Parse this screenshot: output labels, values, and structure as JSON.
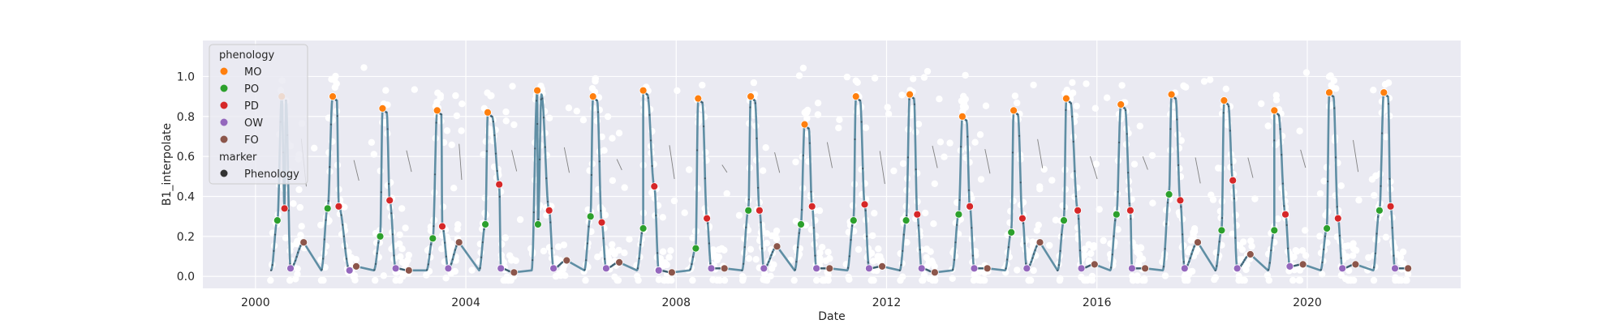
{
  "chart_data": {
    "type": "scatter",
    "title": "",
    "xlabel": "Date",
    "ylabel": "B1_interpolate",
    "xlim": [
      "1999-01-01",
      "2022-12-01"
    ],
    "ylim": [
      -0.06,
      1.18
    ],
    "x_ticks": [
      "2000",
      "2004",
      "2008",
      "2012",
      "2016",
      "2020"
    ],
    "y_ticks": [
      "0.0",
      "0.2",
      "0.4",
      "0.6",
      "0.8",
      "1.0"
    ],
    "grid": true,
    "legend_position": "upper-left",
    "legend": {
      "hue_title": "phenology",
      "hue_entries": [
        {
          "label": "MO",
          "color": "#ff7f0e"
        },
        {
          "label": "PO",
          "color": "#2ca02c"
        },
        {
          "label": "PD",
          "color": "#d62728"
        },
        {
          "label": "OW",
          "color": "#9467bd"
        },
        {
          "label": "FO",
          "color": "#8c564b"
        }
      ],
      "style_title": "marker",
      "style_entries": [
        {
          "label": "Phenology",
          "color": "#333333"
        }
      ]
    },
    "colors": {
      "background": "#eaeaf2",
      "grid": "#ffffff",
      "curve": "#5f8ea4",
      "curve_points": "#3d5a6a",
      "raw_points": "#ffffff",
      "gap_line": "#808080"
    },
    "phenology": {
      "MO": [
        [
          "2000-07-01",
          0.9
        ],
        [
          "2001-06-20",
          0.9
        ],
        [
          "2002-06-01",
          0.84
        ],
        [
          "2003-06-15",
          0.83
        ],
        [
          "2004-06-01",
          0.82
        ],
        [
          "2005-05-10",
          0.93
        ],
        [
          "2006-06-01",
          0.9
        ],
        [
          "2007-05-15",
          0.93
        ],
        [
          "2008-06-01",
          0.89
        ],
        [
          "2009-06-01",
          0.9
        ],
        [
          "2010-06-10",
          0.76
        ],
        [
          "2011-06-01",
          0.9
        ],
        [
          "2012-06-10",
          0.91
        ],
        [
          "2013-06-10",
          0.8
        ],
        [
          "2014-06-01",
          0.83
        ],
        [
          "2015-06-01",
          0.89
        ],
        [
          "2016-06-15",
          0.86
        ],
        [
          "2017-06-01",
          0.91
        ],
        [
          "2018-06-01",
          0.88
        ],
        [
          "2019-05-15",
          0.83
        ],
        [
          "2020-06-01",
          0.92
        ],
        [
          "2021-06-15",
          0.92
        ]
      ],
      "PO": [
        [
          "2000-06-01",
          0.28
        ],
        [
          "2001-05-15",
          0.34
        ],
        [
          "2002-05-15",
          0.2
        ],
        [
          "2003-05-15",
          0.19
        ],
        [
          "2004-05-15",
          0.26
        ],
        [
          "2005-05-15",
          0.26
        ],
        [
          "2006-05-15",
          0.3
        ],
        [
          "2007-05-15",
          0.24
        ],
        [
          "2008-05-15",
          0.14
        ],
        [
          "2009-05-15",
          0.33
        ],
        [
          "2010-05-15",
          0.26
        ],
        [
          "2011-05-15",
          0.28
        ],
        [
          "2012-05-15",
          0.28
        ],
        [
          "2013-05-15",
          0.31
        ],
        [
          "2014-05-15",
          0.22
        ],
        [
          "2015-05-15",
          0.28
        ],
        [
          "2016-05-15",
          0.31
        ],
        [
          "2017-05-15",
          0.41
        ],
        [
          "2018-05-15",
          0.23
        ],
        [
          "2019-05-15",
          0.23
        ],
        [
          "2020-05-15",
          0.24
        ],
        [
          "2021-05-15",
          0.33
        ]
      ],
      "PD": [
        [
          "2000-07-20",
          0.34
        ],
        [
          "2001-08-01",
          0.35
        ],
        [
          "2002-07-20",
          0.38
        ],
        [
          "2003-07-20",
          0.25
        ],
        [
          "2004-08-20",
          0.46
        ],
        [
          "2005-08-01",
          0.33
        ],
        [
          "2006-08-01",
          0.27
        ],
        [
          "2007-08-01",
          0.45
        ],
        [
          "2008-08-01",
          0.29
        ],
        [
          "2009-08-01",
          0.33
        ],
        [
          "2010-08-01",
          0.35
        ],
        [
          "2011-08-01",
          0.36
        ],
        [
          "2012-08-01",
          0.31
        ],
        [
          "2013-08-01",
          0.35
        ],
        [
          "2014-08-01",
          0.29
        ],
        [
          "2015-08-20",
          0.33
        ],
        [
          "2016-08-20",
          0.33
        ],
        [
          "2017-08-01",
          0.38
        ],
        [
          "2018-08-01",
          0.48
        ],
        [
          "2019-08-01",
          0.31
        ],
        [
          "2020-08-01",
          0.29
        ],
        [
          "2021-08-01",
          0.35
        ]
      ],
      "OW": [
        [
          "2000-09-01",
          0.04
        ],
        [
          "2001-10-15",
          0.03
        ],
        [
          "2002-09-01",
          0.04
        ],
        [
          "2003-09-01",
          0.04
        ],
        [
          "2004-09-01",
          0.04
        ],
        [
          "2005-09-01",
          0.04
        ],
        [
          "2006-09-01",
          0.04
        ],
        [
          "2007-09-01",
          0.03
        ],
        [
          "2008-09-01",
          0.04
        ],
        [
          "2009-09-01",
          0.04
        ],
        [
          "2010-09-01",
          0.04
        ],
        [
          "2011-09-01",
          0.04
        ],
        [
          "2012-09-01",
          0.04
        ],
        [
          "2013-09-01",
          0.04
        ],
        [
          "2014-09-01",
          0.04
        ],
        [
          "2015-09-15",
          0.04
        ],
        [
          "2016-09-01",
          0.04
        ],
        [
          "2017-09-01",
          0.04
        ],
        [
          "2018-09-01",
          0.04
        ],
        [
          "2019-09-01",
          0.05
        ],
        [
          "2020-09-01",
          0.04
        ],
        [
          "2021-09-01",
          0.04
        ]
      ],
      "FO": [
        [
          "2000-12-01",
          0.17
        ],
        [
          "2001-12-01",
          0.05
        ],
        [
          "2002-12-01",
          0.03
        ],
        [
          "2003-11-15",
          0.17
        ],
        [
          "2004-12-01",
          0.02
        ],
        [
          "2005-12-01",
          0.08
        ],
        [
          "2006-12-01",
          0.07
        ],
        [
          "2007-12-01",
          0.02
        ],
        [
          "2008-12-01",
          0.04
        ],
        [
          "2009-12-01",
          0.15
        ],
        [
          "2010-12-01",
          0.04
        ],
        [
          "2011-12-01",
          0.05
        ],
        [
          "2012-12-01",
          0.02
        ],
        [
          "2013-12-01",
          0.04
        ],
        [
          "2014-12-01",
          0.17
        ],
        [
          "2015-12-15",
          0.06
        ],
        [
          "2016-12-01",
          0.04
        ],
        [
          "2017-12-01",
          0.17
        ],
        [
          "2018-12-01",
          0.11
        ],
        [
          "2019-12-01",
          0.06
        ],
        [
          "2020-12-01",
          0.06
        ],
        [
          "2021-12-01",
          0.04
        ]
      ]
    }
  }
}
